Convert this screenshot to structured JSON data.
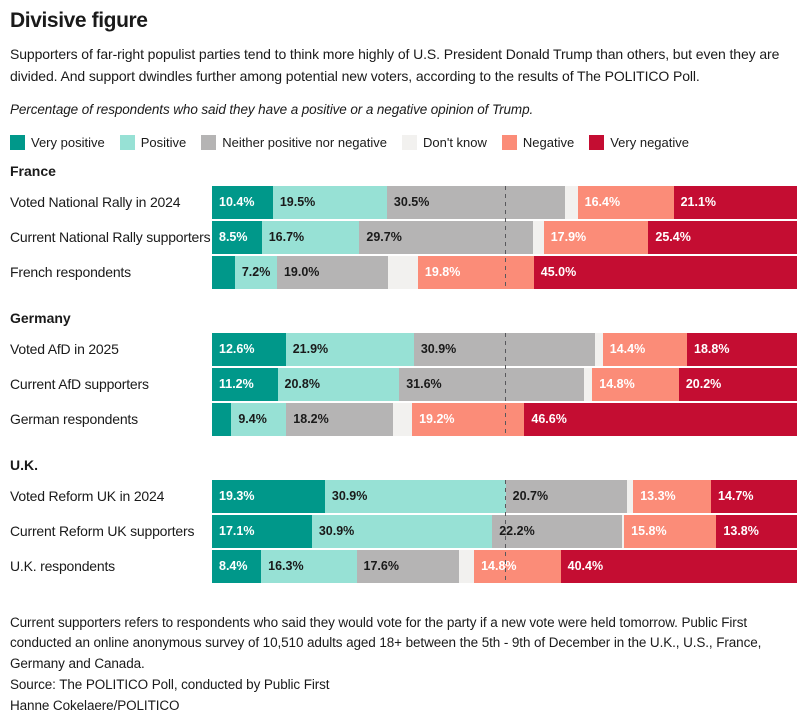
{
  "header": {
    "title": "Divisive figure",
    "dek": "Supporters of far-right populist parties tend to think more highly of U.S. President Donald Trump than others, but even they are divided. And support dwindles further among potential new voters, according to the results of The POLITICO Poll.",
    "subtitle": "Percentage of respondents who said they have a positive or a negative opinion of Trump."
  },
  "colors": {
    "very_positive": "#00988A",
    "positive": "#97E1D5",
    "neither": "#B5B4B4",
    "dont_know": "#F2F1EF",
    "negative": "#FB8C78",
    "very_negative": "#C40D32",
    "label_dark": "#1A1A1A",
    "label_light": "#FFFFFF",
    "guide_line": "#58585C"
  },
  "legend": [
    {
      "key": "very_positive",
      "label": "Very positive",
      "text": "light"
    },
    {
      "key": "positive",
      "label": "Positive",
      "text": "dark"
    },
    {
      "key": "neither",
      "label": "Neither positive nor negative",
      "text": "dark"
    },
    {
      "key": "dont_know",
      "label": "Don't know",
      "text": "dark"
    },
    {
      "key": "negative",
      "label": "Negative",
      "text": "light"
    },
    {
      "key": "very_negative",
      "label": "Very negative",
      "text": "light"
    }
  ],
  "chart_data": {
    "type": "bar",
    "stacked": true,
    "orientation": "horizontal",
    "unit": "%",
    "axis_range": [
      0,
      100
    ],
    "guide_line_percent": 50,
    "legend_position": "top",
    "series_keys": [
      "very_positive",
      "positive",
      "neither",
      "dont_know",
      "negative",
      "very_negative"
    ],
    "groups": [
      {
        "name": "France",
        "rows": [
          {
            "label": "Voted National Rally in 2024",
            "segments": [
              {
                "key": "very_positive",
                "value": 10.4,
                "label": "10.4%"
              },
              {
                "key": "positive",
                "value": 19.5,
                "label": "19.5%"
              },
              {
                "key": "neither",
                "value": 30.5,
                "label": "30.5%"
              },
              {
                "key": "dont_know",
                "value": 2.1,
                "label": null
              },
              {
                "key": "negative",
                "value": 16.4,
                "label": "16.4%"
              },
              {
                "key": "very_negative",
                "value": 21.1,
                "label": "21.1%"
              }
            ]
          },
          {
            "label": "Current National Rally supporters",
            "segments": [
              {
                "key": "very_positive",
                "value": 8.5,
                "label": "8.5%"
              },
              {
                "key": "positive",
                "value": 16.7,
                "label": "16.7%"
              },
              {
                "key": "neither",
                "value": 29.7,
                "label": "29.7%"
              },
              {
                "key": "dont_know",
                "value": 1.8,
                "label": null
              },
              {
                "key": "negative",
                "value": 17.9,
                "label": "17.9%"
              },
              {
                "key": "very_negative",
                "value": 25.4,
                "label": "25.4%"
              }
            ]
          },
          {
            "label": "French respondents",
            "segments": [
              {
                "key": "very_positive",
                "value": 3.9,
                "label": null
              },
              {
                "key": "positive",
                "value": 7.2,
                "label": "7.2%"
              },
              {
                "key": "neither",
                "value": 19.0,
                "label": "19.0%"
              },
              {
                "key": "dont_know",
                "value": 5.1,
                "label": null
              },
              {
                "key": "negative",
                "value": 19.8,
                "label": "19.8%"
              },
              {
                "key": "very_negative",
                "value": 45.0,
                "label": "45.0%"
              }
            ]
          }
        ]
      },
      {
        "name": "Germany",
        "rows": [
          {
            "label": "Voted AfD in 2025",
            "segments": [
              {
                "key": "very_positive",
                "value": 12.6,
                "label": "12.6%"
              },
              {
                "key": "positive",
                "value": 21.9,
                "label": "21.9%"
              },
              {
                "key": "neither",
                "value": 30.9,
                "label": "30.9%"
              },
              {
                "key": "dont_know",
                "value": 1.4,
                "label": null
              },
              {
                "key": "negative",
                "value": 14.4,
                "label": "14.4%"
              },
              {
                "key": "very_negative",
                "value": 18.8,
                "label": "18.8%"
              }
            ]
          },
          {
            "label": "Current AfD supporters",
            "segments": [
              {
                "key": "very_positive",
                "value": 11.2,
                "label": "11.2%"
              },
              {
                "key": "positive",
                "value": 20.8,
                "label": "20.8%"
              },
              {
                "key": "neither",
                "value": 31.6,
                "label": "31.6%"
              },
              {
                "key": "dont_know",
                "value": 1.4,
                "label": null
              },
              {
                "key": "negative",
                "value": 14.8,
                "label": "14.8%"
              },
              {
                "key": "very_negative",
                "value": 20.2,
                "label": "20.2%"
              }
            ]
          },
          {
            "label": "German respondents",
            "segments": [
              {
                "key": "very_positive",
                "value": 3.3,
                "label": null
              },
              {
                "key": "positive",
                "value": 9.4,
                "label": "9.4%"
              },
              {
                "key": "neither",
                "value": 18.2,
                "label": "18.2%"
              },
              {
                "key": "dont_know",
                "value": 3.3,
                "label": null
              },
              {
                "key": "negative",
                "value": 19.2,
                "label": "19.2%"
              },
              {
                "key": "very_negative",
                "value": 46.6,
                "label": "46.6%"
              }
            ]
          }
        ]
      },
      {
        "name": "U.K.",
        "rows": [
          {
            "label": "Voted Reform UK in 2024",
            "segments": [
              {
                "key": "very_positive",
                "value": 19.3,
                "label": "19.3%"
              },
              {
                "key": "positive",
                "value": 30.9,
                "label": "30.9%"
              },
              {
                "key": "neither",
                "value": 20.7,
                "label": "20.7%"
              },
              {
                "key": "dont_know",
                "value": 1.1,
                "label": null
              },
              {
                "key": "negative",
                "value": 13.3,
                "label": "13.3%"
              },
              {
                "key": "very_negative",
                "value": 14.7,
                "label": "14.7%"
              }
            ]
          },
          {
            "label": "Current Reform UK supporters",
            "segments": [
              {
                "key": "very_positive",
                "value": 17.1,
                "label": "17.1%"
              },
              {
                "key": "positive",
                "value": 30.9,
                "label": "30.9%"
              },
              {
                "key": "neither",
                "value": 22.2,
                "label": "22.2%"
              },
              {
                "key": "dont_know",
                "value": 0.4,
                "label": null
              },
              {
                "key": "negative",
                "value": 15.8,
                "label": "15.8%"
              },
              {
                "key": "very_negative",
                "value": 13.8,
                "label": "13.8%"
              }
            ]
          },
          {
            "label": "U.K. respondents",
            "segments": [
              {
                "key": "very_positive",
                "value": 8.4,
                "label": "8.4%"
              },
              {
                "key": "positive",
                "value": 16.3,
                "label": "16.3%"
              },
              {
                "key": "neither",
                "value": 17.6,
                "label": "17.6%"
              },
              {
                "key": "dont_know",
                "value": 2.5,
                "label": null
              },
              {
                "key": "negative",
                "value": 14.8,
                "label": "14.8%"
              },
              {
                "key": "very_negative",
                "value": 40.4,
                "label": "40.4%"
              }
            ]
          }
        ]
      }
    ]
  },
  "footer": {
    "note": "Current supporters refers to respondents who said they would vote for the party if a new vote were held tomorrow. Public First conducted an online anonymous survey of 10,510 adults aged 18+ between the 5th - 9th of December in the U.K., U.S., France, Germany and Canada.",
    "source": "Source: The POLITICO Poll, conducted by Public First",
    "byline": "Hanne Cokelaere/POLITICO"
  }
}
